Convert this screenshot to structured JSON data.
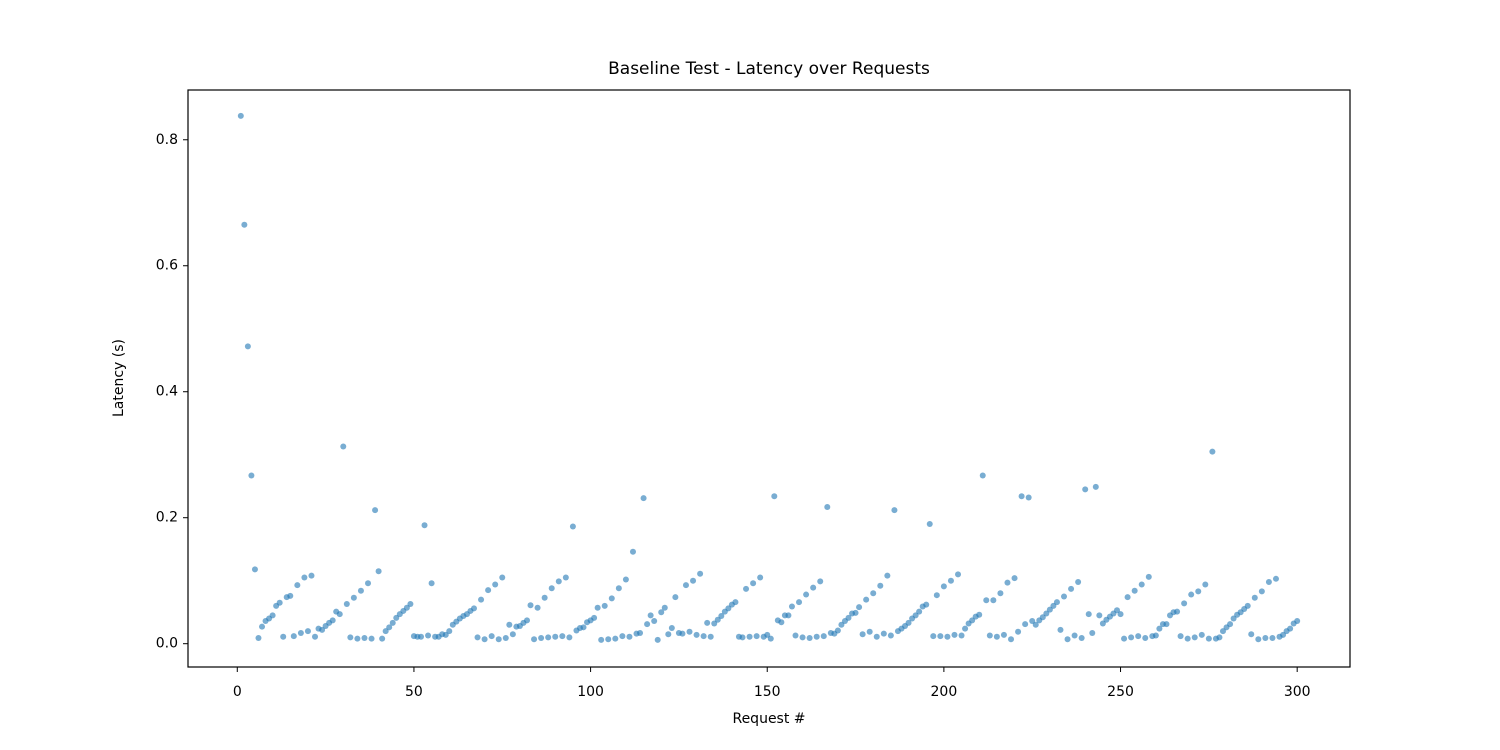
{
  "chart_data": {
    "type": "scatter",
    "title": "Baseline Test - Latency over Requests",
    "xlabel": "Request #",
    "ylabel": "Latency (s)",
    "color": "#1f77b4",
    "alpha": 0.6,
    "xlim": [
      -13.95,
      314.95
    ],
    "ylim": [
      -0.037,
      0.879
    ],
    "xticks": [
      0,
      50,
      100,
      150,
      200,
      250,
      300
    ],
    "yticks": [
      {
        "value": 0,
        "label": "0.0"
      },
      0.2,
      0.4,
      0.6,
      0.8
    ],
    "x": [
      1,
      2,
      3,
      4,
      5,
      6,
      7,
      8,
      9,
      10,
      11,
      12,
      13,
      14,
      15,
      16,
      17,
      18,
      19,
      20,
      21,
      22,
      23,
      24,
      25,
      26,
      27,
      28,
      29,
      30,
      31,
      32,
      33,
      34,
      35,
      36,
      37,
      38,
      39,
      40,
      41,
      42,
      43,
      44,
      45,
      46,
      47,
      48,
      49,
      50,
      51,
      52,
      53,
      54,
      55,
      56,
      57,
      58,
      59,
      60,
      61,
      62,
      63,
      64,
      65,
      66,
      67,
      68,
      69,
      70,
      71,
      72,
      73,
      74,
      75,
      76,
      77,
      78,
      79,
      80,
      81,
      82,
      83,
      84,
      85,
      86,
      87,
      88,
      89,
      90,
      91,
      92,
      93,
      94,
      95,
      96,
      97,
      98,
      99,
      100,
      101,
      102,
      103,
      104,
      105,
      106,
      107,
      108,
      109,
      110,
      111,
      112,
      113,
      114,
      115,
      116,
      117,
      118,
      119,
      120,
      121,
      122,
      123,
      124,
      125,
      126,
      127,
      128,
      129,
      130,
      131,
      132,
      133,
      134,
      135,
      136,
      137,
      138,
      139,
      140,
      141,
      142,
      143,
      144,
      145,
      146,
      147,
      148,
      149,
      150,
      151,
      152,
      153,
      154,
      155,
      156,
      157,
      158,
      159,
      160,
      161,
      162,
      163,
      164,
      165,
      166,
      167,
      168,
      169,
      170,
      171,
      172,
      173,
      174,
      175,
      176,
      177,
      178,
      179,
      180,
      181,
      182,
      183,
      184,
      185,
      186,
      187,
      188,
      189,
      190,
      191,
      192,
      193,
      194,
      195,
      196,
      197,
      198,
      199,
      200,
      201,
      202,
      203,
      204,
      205,
      206,
      207,
      208,
      209,
      210,
      211,
      212,
      213,
      214,
      215,
      216,
      217,
      218,
      219,
      220,
      221,
      222,
      223,
      224,
      225,
      226,
      227,
      228,
      229,
      230,
      231,
      232,
      233,
      234,
      235,
      236,
      237,
      238,
      239,
      240,
      241,
      242,
      243,
      244,
      245,
      246,
      247,
      248,
      249,
      250,
      251,
      252,
      253,
      254,
      255,
      256,
      257,
      258,
      259,
      260,
      261,
      262,
      263,
      264,
      265,
      266,
      267,
      268,
      269,
      270,
      271,
      272,
      273,
      274,
      275,
      276,
      277,
      278,
      279,
      280,
      281,
      282,
      283,
      284,
      285,
      286,
      287,
      288,
      289,
      290,
      291,
      292,
      293,
      294,
      295,
      296,
      297,
      298,
      299,
      300
    ],
    "values": [
      0.838,
      0.665,
      0.472,
      0.267,
      0.118,
      0.009,
      0.027,
      0.036,
      0.04,
      0.045,
      0.06,
      0.065,
      0.011,
      0.074,
      0.076,
      0.012,
      0.093,
      0.017,
      0.105,
      0.02,
      0.108,
      0.011,
      0.024,
      0.022,
      0.028,
      0.033,
      0.037,
      0.051,
      0.047,
      0.313,
      0.063,
      0.01,
      0.073,
      0.008,
      0.084,
      0.009,
      0.096,
      0.008,
      0.212,
      0.115,
      0.008,
      0.02,
      0.026,
      0.033,
      0.041,
      0.047,
      0.052,
      0.057,
      0.063,
      0.012,
      0.011,
      0.011,
      0.188,
      0.013,
      0.096,
      0.011,
      0.011,
      0.015,
      0.014,
      0.02,
      0.03,
      0.035,
      0.04,
      0.044,
      0.047,
      0.052,
      0.056,
      0.01,
      0.07,
      0.007,
      0.085,
      0.012,
      0.094,
      0.007,
      0.105,
      0.009,
      0.03,
      0.015,
      0.027,
      0.028,
      0.033,
      0.037,
      0.061,
      0.007,
      0.057,
      0.009,
      0.073,
      0.01,
      0.088,
      0.011,
      0.099,
      0.012,
      0.105,
      0.01,
      0.186,
      0.021,
      0.025,
      0.026,
      0.034,
      0.037,
      0.041,
      0.057,
      0.006,
      0.06,
      0.007,
      0.072,
      0.008,
      0.088,
      0.012,
      0.102,
      0.011,
      0.146,
      0.016,
      0.017,
      0.231,
      0.031,
      0.045,
      0.036,
      0.006,
      0.05,
      0.057,
      0.015,
      0.025,
      0.074,
      0.017,
      0.016,
      0.093,
      0.019,
      0.1,
      0.014,
      0.111,
      0.012,
      0.033,
      0.011,
      0.032,
      0.038,
      0.044,
      0.051,
      0.056,
      0.062,
      0.066,
      0.011,
      0.01,
      0.087,
      0.011,
      0.096,
      0.012,
      0.105,
      0.011,
      0.014,
      0.008,
      0.234,
      0.037,
      0.034,
      0.045,
      0.045,
      0.059,
      0.013,
      0.066,
      0.01,
      0.078,
      0.009,
      0.089,
      0.011,
      0.099,
      0.012,
      0.217,
      0.017,
      0.016,
      0.021,
      0.03,
      0.036,
      0.041,
      0.048,
      0.049,
      0.058,
      0.015,
      0.07,
      0.019,
      0.08,
      0.011,
      0.092,
      0.016,
      0.108,
      0.013,
      0.212,
      0.02,
      0.024,
      0.028,
      0.033,
      0.04,
      0.045,
      0.051,
      0.059,
      0.062,
      0.19,
      0.012,
      0.077,
      0.012,
      0.091,
      0.011,
      0.1,
      0.014,
      0.11,
      0.013,
      0.024,
      0.032,
      0.037,
      0.043,
      0.046,
      0.267,
      0.069,
      0.013,
      0.069,
      0.011,
      0.08,
      0.014,
      0.097,
      0.007,
      0.104,
      0.019,
      0.234,
      0.031,
      0.232,
      0.036,
      0.03,
      0.037,
      0.042,
      0.048,
      0.054,
      0.06,
      0.066,
      0.022,
      0.075,
      0.007,
      0.087,
      0.013,
      0.098,
      0.009,
      0.245,
      0.047,
      0.017,
      0.249,
      0.045,
      0.032,
      0.038,
      0.043,
      0.048,
      0.053,
      0.047,
      0.008,
      0.074,
      0.01,
      0.084,
      0.012,
      0.094,
      0.009,
      0.106,
      0.012,
      0.013,
      0.024,
      0.031,
      0.031,
      0.045,
      0.05,
      0.051,
      0.012,
      0.064,
      0.008,
      0.078,
      0.01,
      0.083,
      0.014,
      0.094,
      0.008,
      0.305,
      0.008,
      0.01,
      0.02,
      0.026,
      0.031,
      0.04,
      0.046,
      0.05,
      0.055,
      0.06,
      0.015,
      0.073,
      0.007,
      0.083,
      0.009,
      0.098,
      0.009,
      0.103,
      0.011,
      0.014,
      0.02,
      0.024,
      0.032,
      0.036
    ]
  }
}
